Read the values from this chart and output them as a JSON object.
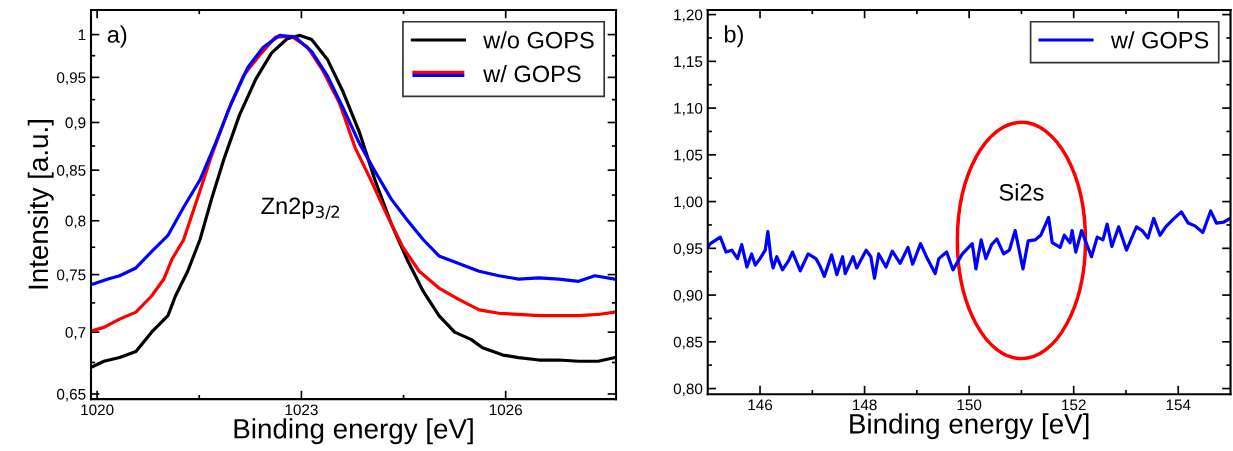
{
  "chart_data": [
    {
      "type": "line",
      "xlabel": "Binding energy [eV]",
      "ylabel": "Intensity [a.u.]",
      "log": "y",
      "xlim": [
        1019.91,
        1027.62
      ],
      "xticks": [
        1020,
        1023,
        1026
      ],
      "ylim": [
        0.646,
        1.03
      ],
      "yticks": [
        {
          "value": 0.65,
          "label": "0,65"
        },
        {
          "value": 0.7,
          "label": "0,7"
        },
        {
          "value": 0.75,
          "label": "0,75"
        },
        {
          "value": 0.8,
          "label": "0,8"
        },
        {
          "value": 0.85,
          "label": "0,85"
        },
        {
          "value": 0.9,
          "label": "0,9"
        },
        {
          "value": 0.95,
          "label": "0,95"
        },
        {
          "value": 1,
          "label": "1"
        }
      ],
      "grid": false,
      "legend": "top right",
      "marker": "none",
      "line_style": "solid",
      "annotations": [
        "a)",
        "Zn2p$_{3/2}$"
      ],
      "series": [
        {
          "name": "w/o GOPS",
          "color": "#000000",
          "x": [
            1019.91,
            1020.1,
            1020.33,
            1020.57,
            1020.8,
            1021.04,
            1021.15,
            1021.33,
            1021.51,
            1021.68,
            1021.86,
            1022.09,
            1022.33,
            1022.56,
            1022.79,
            1022.98,
            1023.15,
            1023.38,
            1023.61,
            1023.85,
            1024.08,
            1024.32,
            1024.55,
            1024.79,
            1025.02,
            1025.25,
            1025.49,
            1025.66,
            1025.96,
            1026.19,
            1026.49,
            1026.78,
            1027.07,
            1027.36,
            1027.6
          ],
          "values": [
            0.671,
            0.676,
            0.679,
            0.684,
            0.7,
            0.714,
            0.731,
            0.753,
            0.782,
            0.821,
            0.861,
            0.908,
            0.948,
            0.978,
            0.995,
            0.999,
            0.994,
            0.971,
            0.934,
            0.89,
            0.84,
            0.797,
            0.764,
            0.735,
            0.714,
            0.7,
            0.694,
            0.687,
            0.681,
            0.679,
            0.677,
            0.677,
            0.676,
            0.676,
            0.679
          ]
        },
        {
          "name": "w/ GOPS",
          "color": "#ff0000",
          "x": [
            1019.91,
            1020.1,
            1020.33,
            1020.57,
            1020.8,
            1020.98,
            1021.1,
            1021.27,
            1021.51,
            1021.68,
            1021.92,
            1022.15,
            1022.38,
            1022.62,
            1022.85,
            1023.09,
            1023.32,
            1023.56,
            1023.79,
            1024.02,
            1024.26,
            1024.49,
            1024.73,
            1025.02,
            1025.31,
            1025.61,
            1025.9,
            1026.19,
            1026.49,
            1026.78,
            1027.07,
            1027.36,
            1027.6
          ],
          "values": [
            0.701,
            0.704,
            0.711,
            0.717,
            0.731,
            0.746,
            0.764,
            0.782,
            0.829,
            0.865,
            0.912,
            0.952,
            0.975,
            0.997,
            0.998,
            0.985,
            0.957,
            0.921,
            0.873,
            0.84,
            0.805,
            0.775,
            0.753,
            0.738,
            0.728,
            0.719,
            0.716,
            0.715,
            0.714,
            0.714,
            0.714,
            0.715,
            0.717
          ]
        },
        {
          "name": "w/ GOPS",
          "color": "#0000ff",
          "x": [
            1019.91,
            1020.16,
            1020.33,
            1020.57,
            1020.8,
            1021.04,
            1021.27,
            1021.51,
            1021.74,
            1021.97,
            1022.21,
            1022.44,
            1022.68,
            1022.91,
            1023.15,
            1023.38,
            1023.61,
            1023.85,
            1024.08,
            1024.32,
            1024.55,
            1024.79,
            1025.02,
            1025.31,
            1025.61,
            1025.9,
            1026.19,
            1026.49,
            1026.78,
            1027.07,
            1027.31,
            1027.6
          ],
          "values": [
            0.741,
            0.746,
            0.749,
            0.756,
            0.771,
            0.786,
            0.813,
            0.84,
            0.878,
            0.921,
            0.961,
            0.985,
            0.999,
            0.997,
            0.98,
            0.952,
            0.916,
            0.878,
            0.849,
            0.821,
            0.801,
            0.782,
            0.767,
            0.76,
            0.753,
            0.749,
            0.746,
            0.747,
            0.746,
            0.744,
            0.749,
            0.746
          ]
        }
      ]
    },
    {
      "type": "line",
      "xlabel": "Binding energy [eV]",
      "xlim": [
        145,
        155
      ],
      "xticks": [
        146,
        148,
        150,
        152,
        154
      ],
      "ylim": [
        0.794,
        1.205
      ],
      "yticks": [
        {
          "value": 0.8,
          "label": "0,80"
        },
        {
          "value": 0.85,
          "label": "0,85"
        },
        {
          "value": 0.9,
          "label": "0,90"
        },
        {
          "value": 0.95,
          "label": "0,95"
        },
        {
          "value": 1.0,
          "label": "1,00"
        },
        {
          "value": 1.05,
          "label": "1,05"
        },
        {
          "value": 1.1,
          "label": "1,10"
        },
        {
          "value": 1.15,
          "label": "1,15"
        },
        {
          "value": 1.2,
          "label": "1,20"
        }
      ],
      "grid": false,
      "legend": "top right",
      "marker": "none",
      "line_style": "solid",
      "annotations": [
        "b)",
        "Si2s"
      ],
      "series": [
        {
          "name": "w/ GOPS",
          "color": "#0000ff",
          "x": [
            145.0,
            145.05,
            145.24,
            145.35,
            145.46,
            145.57,
            145.65,
            145.75,
            145.84,
            145.91,
            146.0,
            146.1,
            146.15,
            146.21,
            146.25,
            146.32,
            146.43,
            146.55,
            146.62,
            146.77,
            146.92,
            147.07,
            147.14,
            147.23,
            147.37,
            147.47,
            147.58,
            147.63,
            147.78,
            147.85,
            148.03,
            148.12,
            148.19,
            148.27,
            148.41,
            148.53,
            148.68,
            148.83,
            148.92,
            149.07,
            149.2,
            149.35,
            149.42,
            149.57,
            149.69,
            149.87,
            150.06,
            150.13,
            150.23,
            150.32,
            150.43,
            150.53,
            150.66,
            150.77,
            150.88,
            151.03,
            151.13,
            151.26,
            151.37,
            151.52,
            151.59,
            151.74,
            151.82,
            151.93,
            151.97,
            152.04,
            152.15,
            152.34,
            152.45,
            152.56,
            152.64,
            152.73,
            152.86,
            153.01,
            153.2,
            153.31,
            153.42,
            153.53,
            153.65,
            153.76,
            153.9,
            154.06,
            154.19,
            154.32,
            154.47,
            154.62,
            154.73,
            154.87,
            154.99
          ],
          "values": [
            0.951,
            0.955,
            0.962,
            0.946,
            0.948,
            0.939,
            0.954,
            0.93,
            0.944,
            0.932,
            0.939,
            0.948,
            0.968,
            0.939,
            0.929,
            0.941,
            0.927,
            0.937,
            0.946,
            0.926,
            0.944,
            0.939,
            0.932,
            0.92,
            0.943,
            0.922,
            0.941,
            0.923,
            0.941,
            0.929,
            0.948,
            0.941,
            0.918,
            0.944,
            0.93,
            0.947,
            0.934,
            0.951,
            0.933,
            0.955,
            0.939,
            0.923,
            0.939,
            0.946,
            0.927,
            0.944,
            0.955,
            0.928,
            0.959,
            0.939,
            0.954,
            0.96,
            0.944,
            0.948,
            0.969,
            0.928,
            0.958,
            0.959,
            0.964,
            0.983,
            0.956,
            0.951,
            0.964,
            0.956,
            0.969,
            0.946,
            0.969,
            0.941,
            0.962,
            0.959,
            0.976,
            0.952,
            0.973,
            0.948,
            0.973,
            0.969,
            0.961,
            0.982,
            0.964,
            0.973,
            0.981,
            0.989,
            0.977,
            0.974,
            0.967,
            0.99,
            0.977,
            0.978,
            0.982
          ]
        }
      ]
    }
  ]
}
